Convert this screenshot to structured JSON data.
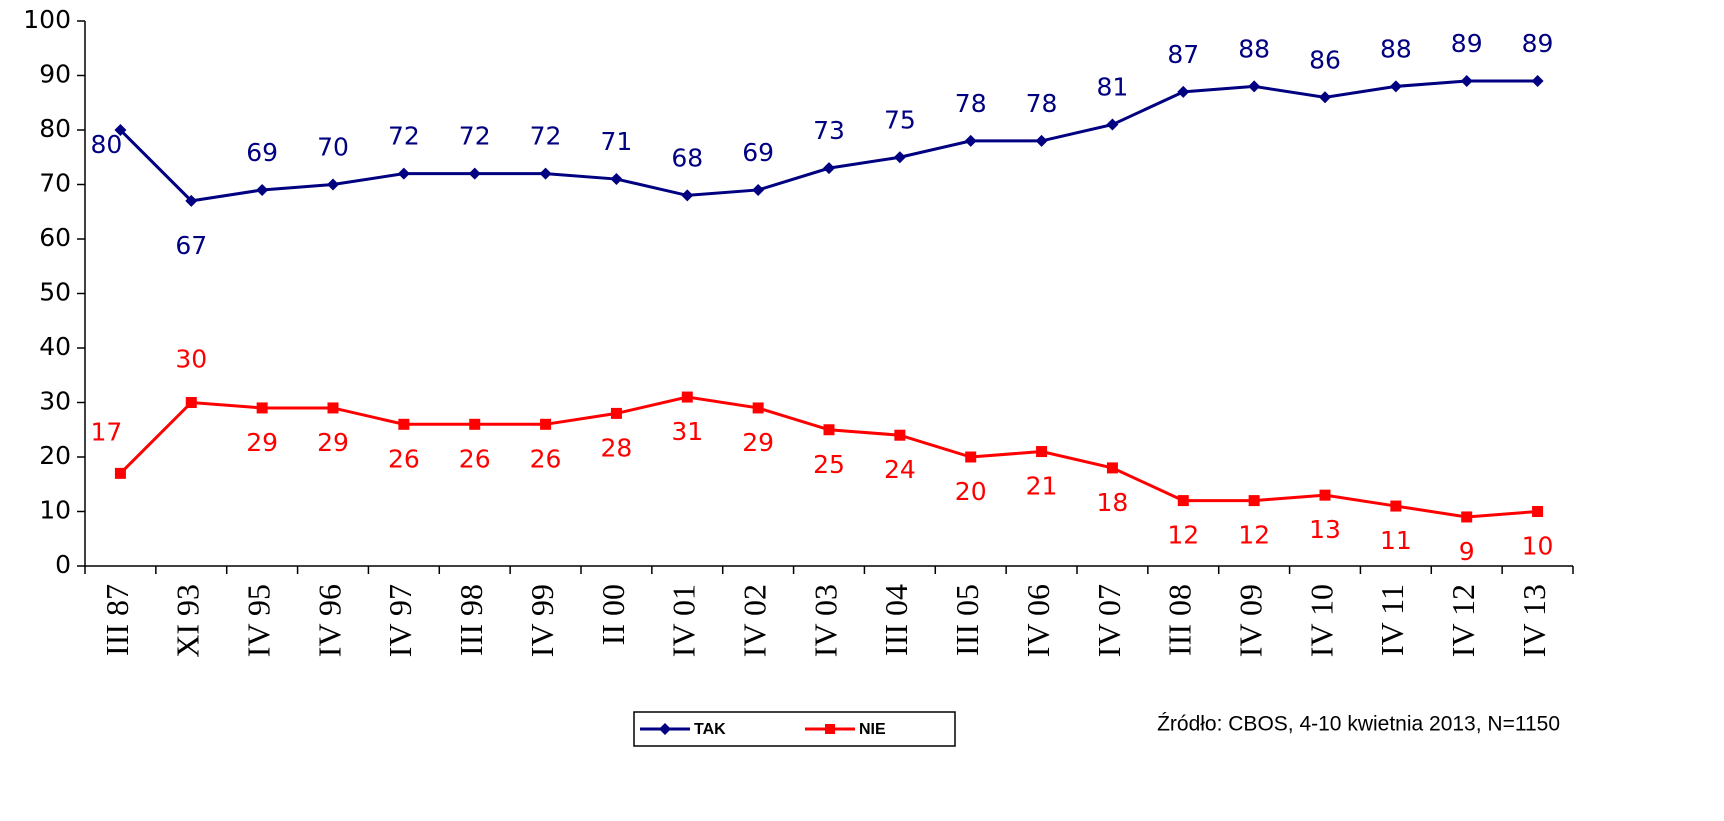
{
  "chart_data": {
    "type": "line",
    "categories": [
      "III 87",
      "XI 93",
      "IV 95",
      "IV 96",
      "IV 97",
      "III 98",
      "IV 99",
      "II 00",
      "IV 01",
      "IV 02",
      "IV 03",
      "III 04",
      "III 05",
      "IV 06",
      "IV 07",
      "III 08",
      "IV 09",
      "IV 10",
      "IV 11",
      "IV 12",
      "IV 13"
    ],
    "series": [
      {
        "name": "TAK",
        "color": "#000080",
        "values": [
          80,
          67,
          69,
          70,
          72,
          72,
          72,
          71,
          68,
          69,
          73,
          75,
          78,
          78,
          81,
          87,
          88,
          86,
          88,
          89,
          89
        ]
      },
      {
        "name": "NIE",
        "color": "#ff0000",
        "values": [
          17,
          30,
          29,
          29,
          26,
          26,
          26,
          28,
          31,
          29,
          25,
          24,
          20,
          21,
          18,
          12,
          12,
          13,
          11,
          9,
          10
        ]
      }
    ],
    "ylim": [
      0,
      100
    ],
    "yticks": [
      0,
      10,
      20,
      30,
      40,
      50,
      60,
      70,
      80,
      90,
      100
    ],
    "grid": false,
    "legend": "bottom",
    "source": "Źródło: CBOS, 4-10 kwietnia 2013, N=1150"
  }
}
